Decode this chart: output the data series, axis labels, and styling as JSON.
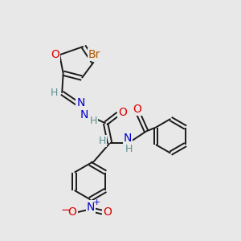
{
  "background_color": "#e8e8e8",
  "bond_color": "#1a1a1a",
  "atom_colors": {
    "Br": "#b05a00",
    "O": "#dd0000",
    "N": "#0000cc",
    "H": "#5a9090",
    "C": "#1a1a1a"
  },
  "figsize": [
    3.0,
    3.0
  ],
  "dpi": 100
}
